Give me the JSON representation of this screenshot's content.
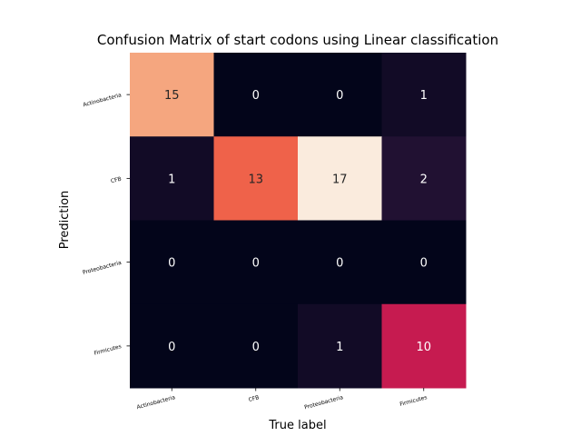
{
  "chart_data": {
    "type": "heatmap",
    "title": "Confusion Matrix of start codons using Linear classification",
    "xlabel": "True label",
    "ylabel": "Prediction",
    "x_categories": [
      "Actinobacteria",
      "CFB",
      "Proteobacteria",
      "Firmicutes"
    ],
    "y_categories": [
      "Actinobacteria",
      "CFB",
      "Proteobacteria",
      "Firmicutes"
    ],
    "values": [
      [
        15,
        0,
        0,
        1
      ],
      [
        1,
        13,
        17,
        2
      ],
      [
        0,
        0,
        0,
        0
      ],
      [
        0,
        0,
        1,
        10
      ]
    ],
    "value_range": [
      0,
      17
    ],
    "colormap": "rocket",
    "grid": false,
    "colorbar": false
  }
}
